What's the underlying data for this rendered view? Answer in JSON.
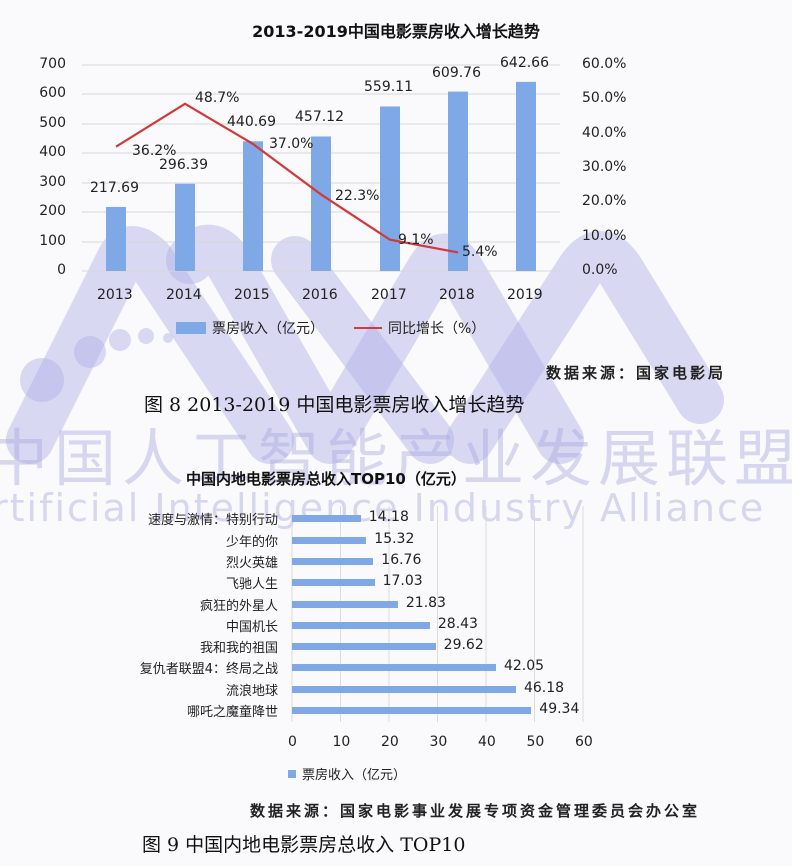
{
  "chart_data": [
    {
      "type": "bar+line",
      "title": "2013-2019中国电影票房收入增长趋势",
      "categories": [
        "2013",
        "2014",
        "2015",
        "2016",
        "2017",
        "2018",
        "2019"
      ],
      "series": [
        {
          "name": "票房收入（亿元）",
          "type": "bar",
          "axis": "left",
          "color": "#7ea9e6",
          "values": [
            217.69,
            296.39,
            440.69,
            457.12,
            559.11,
            609.76,
            642.66
          ],
          "labels": [
            "217.69",
            "296.39",
            "440.69",
            "457.12",
            "559.11",
            "609.76",
            "642.66"
          ]
        },
        {
          "name": "同比增长（%）",
          "type": "line",
          "axis": "right",
          "color": "#d03a3a",
          "values": [
            36.2,
            48.7,
            37.0,
            22.3,
            9.1,
            5.4,
            null
          ],
          "labels": [
            "36.2%",
            "48.7%",
            "37.0%",
            "22.3%",
            "9.1%",
            "5.4%",
            ""
          ]
        }
      ],
      "ylim_left": [
        0,
        700
      ],
      "yticks_left": [
        "0",
        "100",
        "200",
        "300",
        "400",
        "500",
        "600",
        "700"
      ],
      "ylim_right": [
        0,
        60
      ],
      "yticks_right": [
        "0.0%",
        "10.0%",
        "20.0%",
        "30.0%",
        "40.0%",
        "50.0%",
        "60.0%"
      ],
      "grid": true,
      "legend_position": "bottom"
    },
    {
      "type": "bar",
      "orientation": "horizontal",
      "title": "中国内地电影票房总收入TOP10（亿元）",
      "categories": [
        "速度与激情：特别行动",
        "少年的你",
        "烈火英雄",
        "飞驰人生",
        "疯狂的外星人",
        "中国机长",
        "我和我的祖国",
        "复仇者联盟4：终局之战",
        "流浪地球",
        "哪吒之魔童降世"
      ],
      "values": [
        14.18,
        15.32,
        16.76,
        17.03,
        21.83,
        28.43,
        29.62,
        42.05,
        46.18,
        49.34
      ],
      "labels": [
        "14.18",
        "15.32",
        "16.76",
        "17.03",
        "21.83",
        "28.43",
        "29.62",
        "42.05",
        "46.18",
        "49.34"
      ],
      "series_name": "票房收入（亿元）",
      "xlim": [
        0,
        60
      ],
      "xticks": [
        "0",
        "10",
        "20",
        "30",
        "40",
        "50",
        "60"
      ],
      "grid": true,
      "legend_position": "bottom",
      "color": "#7ea9e6"
    }
  ],
  "figure8": {
    "source": "数据来源：国家电影局",
    "caption": "图 8 2013-2019 中国电影票房收入增长趋势"
  },
  "figure9": {
    "source": "数据来源：国家电影事业发展专项资金管理委员会办公室",
    "caption": "图 9  中国内地电影票房总收入 TOP10"
  },
  "watermark": {
    "cn": "中国人工智能产业发展联盟",
    "en": "rtificial Intelligence Industry Alliance"
  }
}
